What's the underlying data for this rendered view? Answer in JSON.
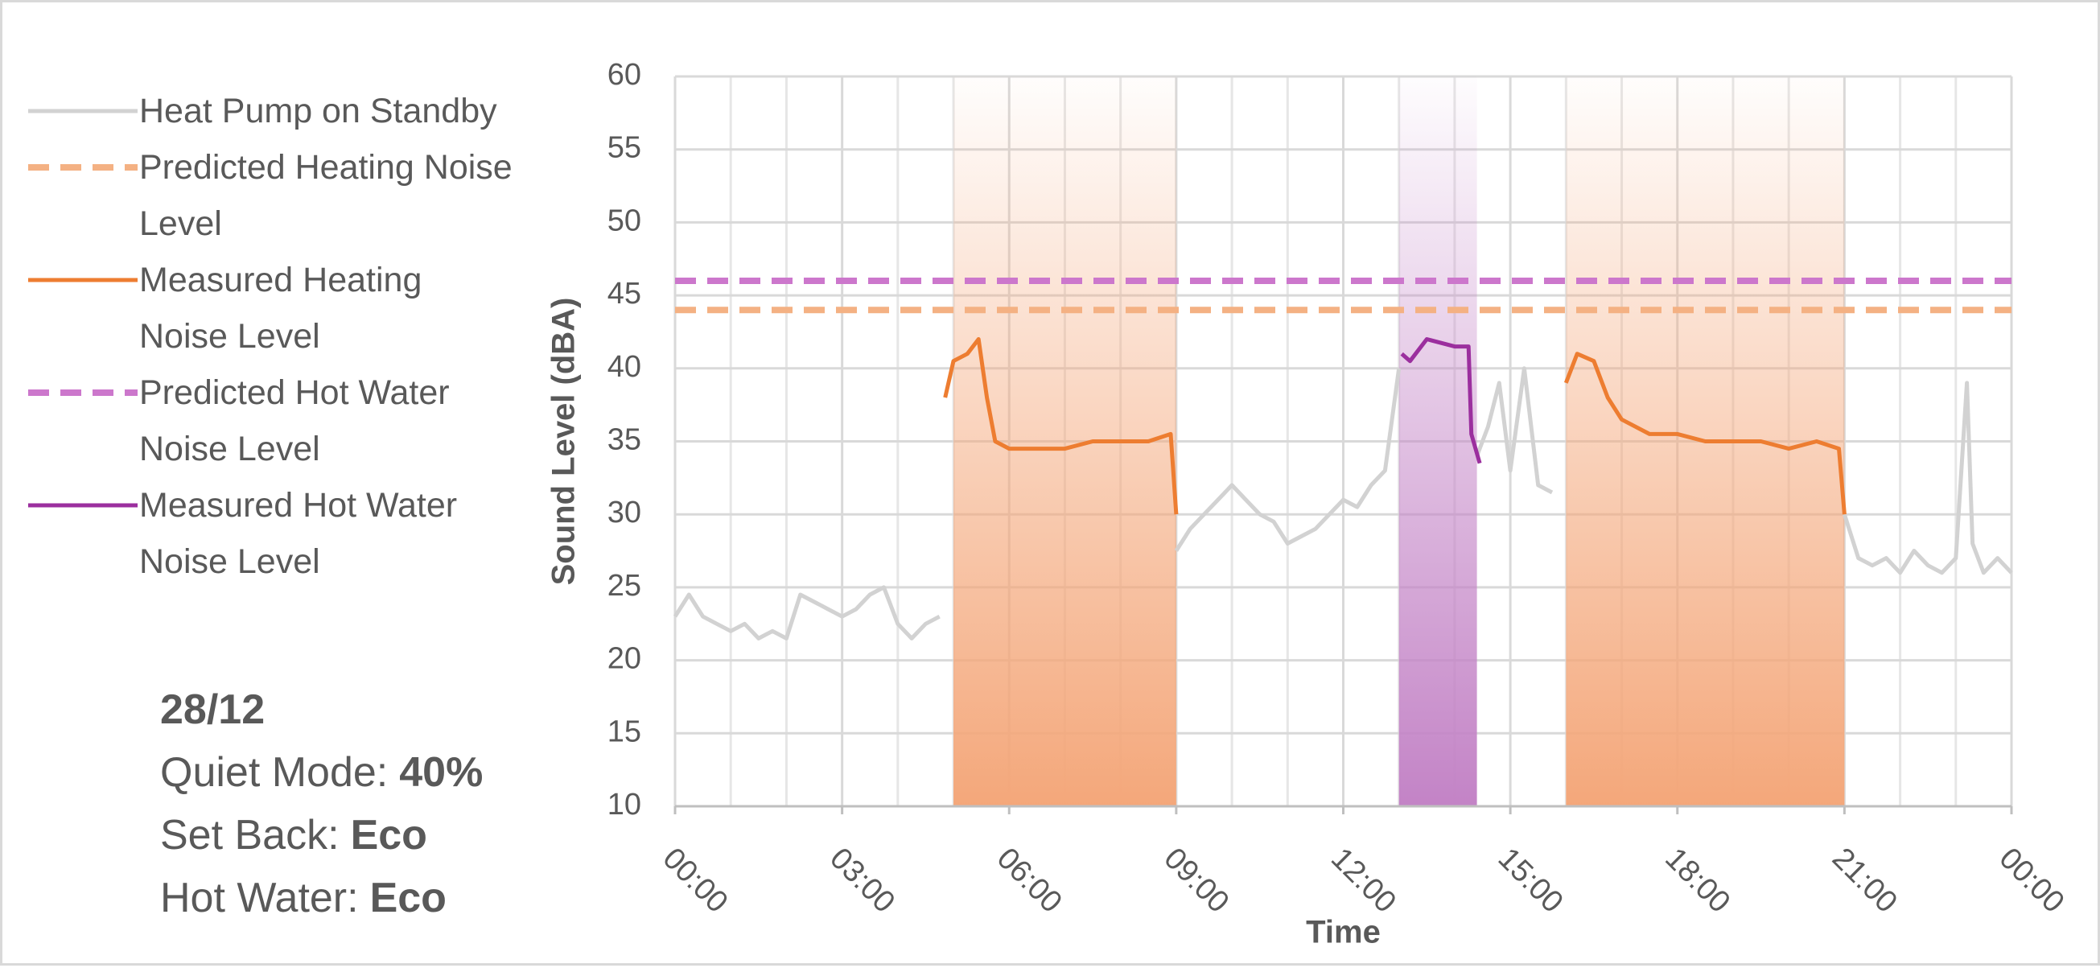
{
  "chart_data": {
    "type": "line",
    "x_label": "Time",
    "y_label": "Sound Level (dBA)",
    "xlim": [
      0,
      24
    ],
    "xticks": [
      {
        "value": 0,
        "label": "00:00"
      },
      {
        "value": 3,
        "label": "03:00"
      },
      {
        "value": 6,
        "label": "06:00"
      },
      {
        "value": 9,
        "label": "09:00"
      },
      {
        "value": 12,
        "label": "12:00"
      },
      {
        "value": 15,
        "label": "15:00"
      },
      {
        "value": 18,
        "label": "18:00"
      },
      {
        "value": 21,
        "label": "21:00"
      },
      {
        "value": 24,
        "label": "00:00"
      }
    ],
    "ylim": [
      10,
      60
    ],
    "yticks": [
      10,
      15,
      20,
      25,
      30,
      35,
      40,
      45,
      50,
      55,
      60
    ],
    "grid": true,
    "legend": "left",
    "regions": [
      {
        "x": [
          5,
          9
        ],
        "color": "#f4a77a"
      },
      {
        "x": [
          13,
          14.4
        ],
        "color": "#c383c6"
      },
      {
        "x": [
          16,
          21
        ],
        "color": "#f4a77a"
      }
    ],
    "series": [
      {
        "name": "Heat Pump on Standby",
        "color": "#d2d2d2",
        "dash": false,
        "x": [
          0,
          0.25,
          0.5,
          0.75,
          1,
          1.25,
          1.5,
          1.75,
          2,
          2.25,
          2.5,
          2.75,
          3,
          3.25,
          3.5,
          3.75,
          4,
          4.25,
          4.5,
          4.75,
          4.9,
          9,
          9.25,
          9.5,
          9.75,
          10,
          10.25,
          10.5,
          10.75,
          11,
          11.25,
          11.5,
          11.75,
          12,
          12.25,
          12.5,
          12.75,
          13,
          13.05,
          14.4,
          14.6,
          14.8,
          15,
          15.25,
          15.5,
          15.75,
          15.8,
          21,
          21.25,
          21.5,
          21.75,
          22,
          22.25,
          22.5,
          22.75,
          23,
          23.2,
          23.3,
          23.5,
          23.75,
          24
        ],
        "values": [
          23,
          24.5,
          23,
          22.5,
          22,
          22.5,
          21.5,
          22,
          21.5,
          24.5,
          24,
          23.5,
          23,
          23.5,
          24.5,
          25,
          22.5,
          21.5,
          22.5,
          23,
          null,
          27.5,
          29,
          30,
          31,
          32,
          31,
          30,
          29.5,
          28,
          28.5,
          29,
          30,
          31,
          30.5,
          32,
          33,
          40,
          null,
          34,
          36,
          39,
          33,
          40,
          32,
          31.5,
          null,
          30,
          27,
          26.5,
          27,
          26,
          27.5,
          26.5,
          26,
          27,
          39,
          28,
          26,
          27,
          26
        ]
      },
      {
        "name": "Predicted Heating Noise Level",
        "color": "#f4b183",
        "dash": true,
        "x": [
          0,
          24
        ],
        "values": [
          44,
          44
        ]
      },
      {
        "name": "Measured Heating Noise Level",
        "color": "#ed7d31",
        "dash": false,
        "x": [
          4.85,
          5,
          5.25,
          5.45,
          5.6,
          5.75,
          6,
          6.5,
          7,
          7.5,
          8,
          8.5,
          8.9,
          9,
          9.05,
          16,
          16.2,
          16.5,
          16.75,
          17,
          17.5,
          18,
          18.5,
          19,
          19.5,
          20,
          20.5,
          20.9,
          21
        ],
        "values": [
          38,
          40.5,
          41,
          42,
          38,
          35,
          34.5,
          34.5,
          34.5,
          35,
          35,
          35,
          35.5,
          30,
          null,
          39,
          41,
          40.5,
          38,
          36.5,
          35.5,
          35.5,
          35,
          35,
          35,
          34.5,
          35,
          34.5,
          30
        ]
      },
      {
        "name": "Predicted Hot Water Noise Level",
        "color": "#cc77cc",
        "dash": true,
        "x": [
          0,
          24
        ],
        "values": [
          46,
          46
        ]
      },
      {
        "name": "Measured Hot Water Noise Level",
        "color": "#9b2f9e",
        "dash": false,
        "x": [
          13.05,
          13.2,
          13.5,
          14,
          14.25,
          14.3,
          14.45
        ],
        "values": [
          41,
          40.5,
          42,
          41.5,
          41.5,
          35.5,
          33.5
        ]
      }
    ],
    "info": {
      "date": "28/12",
      "items": [
        {
          "label": "Quiet Mode:",
          "value": "40%"
        },
        {
          "label": "Set Back:",
          "value": "Eco"
        },
        {
          "label": "Hot Water:",
          "value": "Eco"
        }
      ]
    }
  }
}
